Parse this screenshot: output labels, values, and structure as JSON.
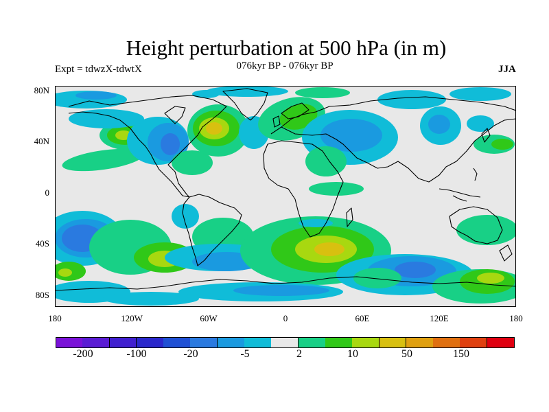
{
  "title": "Height perturbation at 500 hPa (in m)",
  "subtitle": "076kyr BP - 076kyr BP",
  "left_label": "Expt = tdwzX-tdwtX",
  "right_label": "JJA",
  "lat_labels": [
    "80N",
    "40N",
    "0",
    "40S",
    "80S"
  ],
  "lon_labels": [
    "180",
    "120W",
    "60W",
    "0",
    "60E",
    "120E",
    "180"
  ],
  "colorbar": {
    "colors": [
      "#7a12d8",
      "#5a1cd4",
      "#4020d0",
      "#2a28cc",
      "#1f50d4",
      "#2a7ae0",
      "#1a9ae0",
      "#10bcd8",
      "#e8e8e8",
      "#18d086",
      "#30c818",
      "#a8d810",
      "#d8c010",
      "#e0a010",
      "#e07010",
      "#e04010",
      "#e00010"
    ],
    "labels": [
      "-200",
      "-100",
      "-20",
      "-5",
      "2",
      "10",
      "50",
      "150"
    ]
  },
  "map_colors": {
    "background": "#e8e8e8",
    "coast": "#000000"
  }
}
